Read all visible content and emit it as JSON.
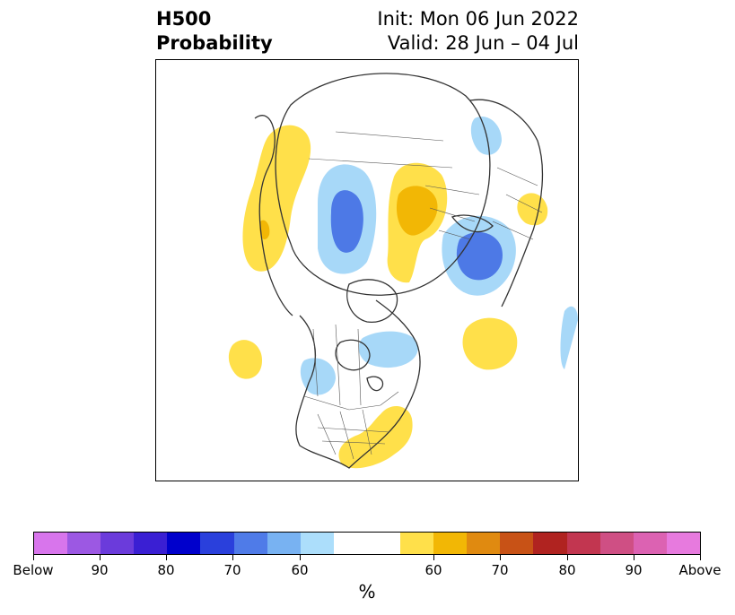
{
  "title": {
    "left_line1": "H500",
    "left_line2": "Probability",
    "right_line1": "Init: Mon 06 Jun 2022",
    "right_line2": "Valid: 28 Jun – 04 Jul"
  },
  "map": {
    "region": "Northern Hemisphere polar stereographic view",
    "below_color": "#a7d8f8",
    "below_dark_color": "#4d79e6",
    "above_color": "#ffe04a",
    "above_dark_color": "#f2b705",
    "coastline_color": "#333333"
  },
  "colorbar": {
    "colors": [
      "#d875ec",
      "#9c58e3",
      "#6b3bdb",
      "#3a1fd3",
      "#0000cc",
      "#2a40dc",
      "#4f7be8",
      "#78b2f2",
      "#acdefb",
      "#ffffff",
      "#ffe04a",
      "#f2b705",
      "#e08a10",
      "#c85216",
      "#b02320",
      "#c23650",
      "#cf4f84",
      "#dc62b2",
      "#e77ade"
    ],
    "tick_labels": [
      "Below",
      "90",
      "80",
      "70",
      "60",
      "60",
      "70",
      "80",
      "90",
      "Above"
    ],
    "unit_label": "%"
  }
}
